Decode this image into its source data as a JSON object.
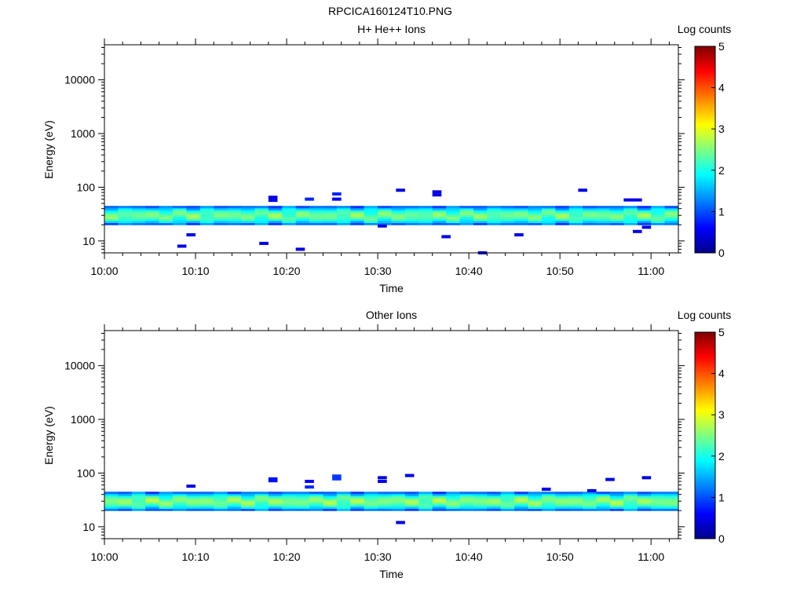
{
  "page_title": "RPCICA160124T10.PNG",
  "colors": {
    "colormap": [
      "#00008b",
      "#0000ff",
      "#0080ff",
      "#00ffff",
      "#7fff80",
      "#ffff00",
      "#ff8000",
      "#ff0000",
      "#800000"
    ],
    "axes": "#000000",
    "background": "#ffffff"
  },
  "chart_data": [
    {
      "type": "heatmap",
      "title": "H+ He++ Ions",
      "xlabel": "Time",
      "ylabel": "Energy (eV)",
      "y_scale": "log",
      "xlim": [
        "10:00",
        "11:03"
      ],
      "ylim": [
        6,
        45000
      ],
      "x_ticks": [
        "10:00",
        "10:10",
        "10:20",
        "10:30",
        "10:40",
        "10:50",
        "11:00"
      ],
      "y_ticks": [
        "10",
        "100",
        "1000",
        "10000"
      ],
      "colorbar": {
        "label": "Log counts",
        "range": [
          0,
          5
        ],
        "ticks": [
          "0",
          "1",
          "2",
          "3",
          "4",
          "5"
        ]
      },
      "band": {
        "energy_range_eV": [
          20,
          45
        ],
        "core_energy_eV": 30,
        "log_counts_core": 2.4,
        "log_counts_edge": 1.0
      },
      "cells": [
        {
          "time": "10:08",
          "energy_eV": 8,
          "log_counts": 0.5
        },
        {
          "time": "10:09",
          "energy_eV": 13,
          "log_counts": 0.5
        },
        {
          "time": "10:17",
          "energy_eV": 9,
          "log_counts": 0.5
        },
        {
          "time": "10:18",
          "energy_eV": 65,
          "log_counts": 0.5
        },
        {
          "time": "10:18",
          "energy_eV": 57,
          "log_counts": 0.5
        },
        {
          "time": "10:21",
          "energy_eV": 7,
          "log_counts": 0.5
        },
        {
          "time": "10:22",
          "energy_eV": 60,
          "log_counts": 0.8
        },
        {
          "time": "10:25",
          "energy_eV": 75,
          "log_counts": 0.8
        },
        {
          "time": "10:25",
          "energy_eV": 60,
          "log_counts": 0.6
        },
        {
          "time": "10:30",
          "energy_eV": 19,
          "log_counts": 0.5
        },
        {
          "time": "10:32",
          "energy_eV": 88,
          "log_counts": 0.5
        },
        {
          "time": "10:36",
          "energy_eV": 82,
          "log_counts": 0.5
        },
        {
          "time": "10:36",
          "energy_eV": 72,
          "log_counts": 0.5
        },
        {
          "time": "10:37",
          "energy_eV": 12,
          "log_counts": 0.5
        },
        {
          "time": "10:41",
          "energy_eV": 6,
          "log_counts": 0.5
        },
        {
          "time": "10:45",
          "energy_eV": 13,
          "log_counts": 0.5
        },
        {
          "time": "10:52",
          "energy_eV": 88,
          "log_counts": 0.5
        },
        {
          "time": "10:57",
          "energy_eV": 58,
          "log_counts": 0.5
        },
        {
          "time": "10:58",
          "energy_eV": 58,
          "log_counts": 0.5
        },
        {
          "time": "10:58",
          "energy_eV": 15,
          "log_counts": 0.5
        },
        {
          "time": "10:59",
          "energy_eV": 18,
          "log_counts": 0.5
        }
      ]
    },
    {
      "type": "heatmap",
      "title": "Other Ions",
      "xlabel": "Time",
      "ylabel": "Energy (eV)",
      "y_scale": "log",
      "xlim": [
        "10:00",
        "11:03"
      ],
      "ylim": [
        6,
        45000
      ],
      "x_ticks": [
        "10:00",
        "10:10",
        "10:20",
        "10:30",
        "10:40",
        "10:50",
        "11:00"
      ],
      "y_ticks": [
        "10",
        "100",
        "1000",
        "10000"
      ],
      "colorbar": {
        "label": "Log counts",
        "range": [
          0,
          5
        ],
        "ticks": [
          "0",
          "1",
          "2",
          "3",
          "4",
          "5"
        ]
      },
      "band": {
        "energy_range_eV": [
          20,
          45
        ],
        "core_energy_eV": 30,
        "log_counts_core": 2.5,
        "log_counts_edge": 1.0
      },
      "cells": [
        {
          "time": "10:09",
          "energy_eV": 57,
          "log_counts": 0.5
        },
        {
          "time": "10:18",
          "energy_eV": 78,
          "log_counts": 0.7
        },
        {
          "time": "10:18",
          "energy_eV": 72,
          "log_counts": 0.7
        },
        {
          "time": "10:22",
          "energy_eV": 70,
          "log_counts": 0.6
        },
        {
          "time": "10:22",
          "energy_eV": 55,
          "log_counts": 0.8
        },
        {
          "time": "10:25",
          "energy_eV": 88,
          "log_counts": 0.9
        },
        {
          "time": "10:25",
          "energy_eV": 78,
          "log_counts": 0.9
        },
        {
          "time": "10:30",
          "energy_eV": 82,
          "log_counts": 0.5
        },
        {
          "time": "10:30",
          "energy_eV": 70,
          "log_counts": 0.5
        },
        {
          "time": "10:32",
          "energy_eV": 12,
          "log_counts": 0.5
        },
        {
          "time": "10:33",
          "energy_eV": 90,
          "log_counts": 0.5
        },
        {
          "time": "10:48",
          "energy_eV": 50,
          "log_counts": 0.5
        },
        {
          "time": "10:53",
          "energy_eV": 47,
          "log_counts": 0.5
        },
        {
          "time": "10:55",
          "energy_eV": 76,
          "log_counts": 0.5
        },
        {
          "time": "10:59",
          "energy_eV": 82,
          "log_counts": 0.5
        }
      ]
    }
  ]
}
